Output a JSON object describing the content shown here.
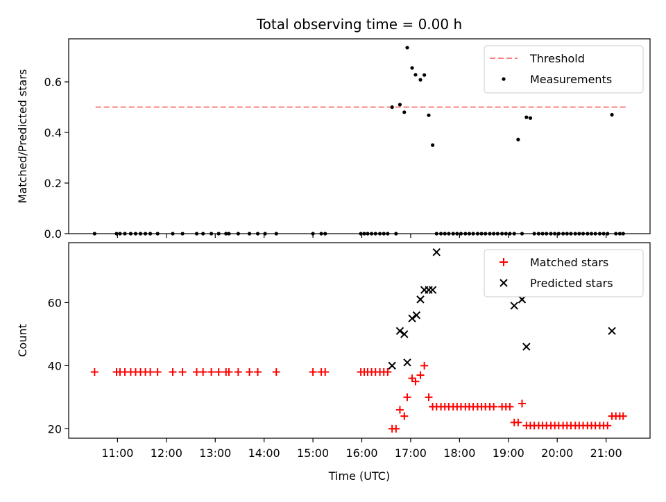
{
  "figure_title": "Total observing time = 0.00 h",
  "chart_data": [
    {
      "type": "scatter",
      "panel": "top",
      "ylabel": "Matched/Predicted stars",
      "ylim": [
        0,
        0.77
      ],
      "xlim": [
        10.0,
        21.9
      ],
      "yticks": [
        0.0,
        0.2,
        0.4,
        0.6
      ],
      "ytick_labels": [
        "0.0",
        "0.2",
        "0.4",
        "0.6"
      ],
      "legend_position": "top-right",
      "threshold": {
        "name": "Threshold",
        "value": 0.5,
        "x_range": [
          10.55,
          21.42
        ],
        "color": "#ff7f7f"
      },
      "series": [
        {
          "name": "Measurements",
          "color": "#000000",
          "x": [
            10.53,
            10.98,
            11.05,
            11.15,
            11.27,
            11.37,
            11.47,
            11.57,
            11.67,
            11.82,
            12.13,
            12.33,
            12.62,
            12.75,
            12.92,
            13.07,
            13.22,
            13.28,
            13.47,
            13.7,
            13.87,
            14.02,
            14.25,
            15.0,
            15.17,
            15.25,
            15.98,
            16.05,
            16.12,
            16.2,
            16.28,
            16.37,
            16.45,
            16.53,
            16.62,
            16.7,
            16.78,
            16.87,
            16.93,
            17.03,
            17.1,
            17.2,
            17.28,
            17.37,
            17.45,
            17.53,
            17.62,
            17.7,
            17.78,
            17.87,
            17.95,
            18.03,
            18.12,
            18.2,
            18.28,
            18.37,
            18.45,
            18.53,
            18.62,
            18.7,
            18.78,
            18.87,
            18.95,
            19.03,
            19.12,
            19.2,
            19.28,
            19.37,
            19.45,
            19.53,
            19.62,
            19.7,
            19.78,
            19.87,
            19.95,
            20.03,
            20.12,
            20.2,
            20.28,
            20.37,
            20.45,
            20.53,
            20.62,
            20.7,
            20.78,
            20.87,
            20.95,
            21.03,
            21.12,
            21.2,
            21.28,
            21.35
          ],
          "y": [
            0,
            0,
            0,
            0,
            0,
            0,
            0,
            0,
            0,
            0,
            0,
            0,
            0,
            0,
            0,
            0,
            0,
            0,
            0,
            0,
            0,
            0,
            0,
            0,
            0,
            0,
            0,
            0,
            0,
            0,
            0,
            0,
            0,
            0,
            0.5,
            0,
            0.51,
            0.48,
            0.735,
            0.655,
            0.628,
            0.608,
            0.627,
            0.468,
            0.35,
            0,
            0,
            0,
            0,
            0,
            0,
            0,
            0,
            0,
            0,
            0,
            0,
            0,
            0,
            0,
            0,
            0,
            0,
            0,
            0,
            0.372,
            0,
            0.46,
            0.457,
            0,
            0,
            0,
            0,
            0,
            0,
            0,
            0,
            0,
            0,
            0,
            0,
            0,
            0,
            0,
            0,
            0,
            0,
            0,
            0.47,
            0,
            0,
            0
          ]
        }
      ]
    },
    {
      "type": "scatter",
      "panel": "bottom",
      "xlabel": "Time (UTC)",
      "ylabel": "Count",
      "ylim": [
        17,
        79
      ],
      "xlim": [
        10.0,
        21.9
      ],
      "xticks": [
        11,
        12,
        13,
        14,
        15,
        16,
        17,
        18,
        19,
        20,
        21
      ],
      "xtick_labels": [
        "11:00",
        "12:00",
        "13:00",
        "14:00",
        "15:00",
        "16:00",
        "17:00",
        "18:00",
        "19:00",
        "20:00",
        "21:00"
      ],
      "yticks": [
        20,
        40,
        60
      ],
      "ytick_labels": [
        "20",
        "40",
        "60"
      ],
      "legend_position": "top-right",
      "series": [
        {
          "name": "Matched stars",
          "marker": "plus",
          "color": "#ff0000",
          "x": [
            10.53,
            10.98,
            11.05,
            11.15,
            11.27,
            11.37,
            11.47,
            11.57,
            11.67,
            11.82,
            12.13,
            12.33,
            12.62,
            12.75,
            12.92,
            13.07,
            13.22,
            13.28,
            13.47,
            13.7,
            13.87,
            14.25,
            15.0,
            15.17,
            15.25,
            15.98,
            16.05,
            16.12,
            16.2,
            16.28,
            16.37,
            16.45,
            16.53,
            16.62,
            16.7,
            16.78,
            16.87,
            16.93,
            17.03,
            17.1,
            17.2,
            17.28,
            17.37,
            17.45,
            17.53,
            17.62,
            17.7,
            17.78,
            17.87,
            17.95,
            18.03,
            18.12,
            18.2,
            18.28,
            18.37,
            18.45,
            18.53,
            18.62,
            18.7,
            18.87,
            18.95,
            19.03,
            19.12,
            19.2,
            19.28,
            19.37,
            19.45,
            19.53,
            19.62,
            19.7,
            19.78,
            19.87,
            19.95,
            20.03,
            20.12,
            20.2,
            20.28,
            20.37,
            20.45,
            20.53,
            20.62,
            20.7,
            20.78,
            20.87,
            20.95,
            21.03,
            21.12,
            21.2,
            21.28,
            21.35
          ],
          "y": [
            38,
            38,
            38,
            38,
            38,
            38,
            38,
            38,
            38,
            38,
            38,
            38,
            38,
            38,
            38,
            38,
            38,
            38,
            38,
            38,
            38,
            38,
            38,
            38,
            38,
            38,
            38,
            38,
            38,
            38,
            38,
            38,
            38,
            20,
            20,
            26,
            24,
            30,
            36,
            35,
            37,
            40,
            30,
            27,
            27,
            27,
            27,
            27,
            27,
            27,
            27,
            27,
            27,
            27,
            27,
            27,
            27,
            27,
            27,
            27,
            27,
            27,
            22,
            22,
            28,
            21,
            21,
            21,
            21,
            21,
            21,
            21,
            21,
            21,
            21,
            21,
            21,
            21,
            21,
            21,
            21,
            21,
            21,
            21,
            21,
            21,
            24,
            24,
            24,
            24
          ]
        },
        {
          "name": "Predicted stars",
          "marker": "x",
          "color": "#000000",
          "x": [
            16.62,
            16.78,
            16.87,
            16.93,
            17.03,
            17.12,
            17.2,
            17.28,
            17.37,
            17.45,
            17.53,
            19.12,
            19.28,
            19.37,
            21.12
          ],
          "y": [
            40,
            51,
            50,
            41,
            55,
            56,
            61,
            64,
            64,
            64,
            76,
            59,
            61,
            46,
            51
          ]
        }
      ]
    }
  ]
}
